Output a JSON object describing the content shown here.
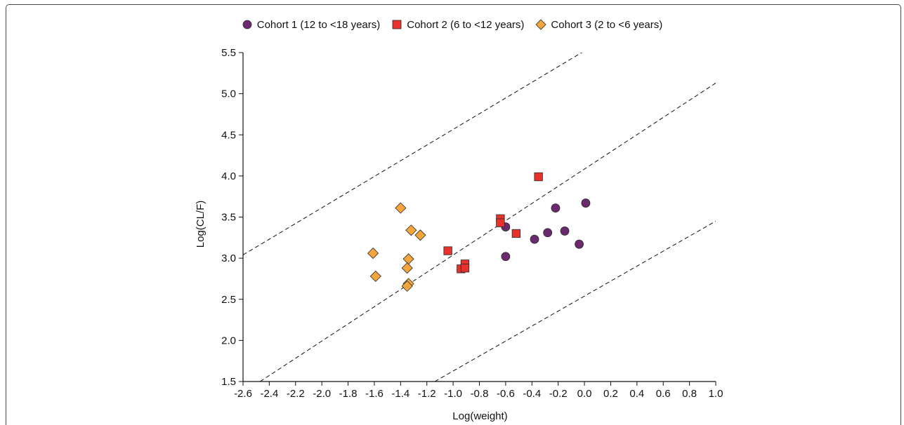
{
  "chart_data": {
    "type": "scatter",
    "xlabel": "Log(weight)",
    "ylabel": "Log(CL/F)",
    "xlim": [
      -2.6,
      1.0
    ],
    "ylim": [
      1.5,
      5.5
    ],
    "x_ticks": [
      "-2.6",
      "-2.4",
      "-2.2",
      "-2.0",
      "-1.8",
      "-1.6",
      "-1.4",
      "-1.2",
      "-1.0",
      "-0.8",
      "-0.6",
      "-0.4",
      "-0.2",
      "0.0",
      "0.2",
      "0.4",
      "0.6",
      "0.8",
      "1.0"
    ],
    "y_ticks": [
      "1.5",
      "2.0",
      "2.5",
      "3.0",
      "3.5",
      "4.0",
      "4.5",
      "5.0",
      "5.5"
    ],
    "legend_position": "top-center",
    "grid": false,
    "series": [
      {
        "name": "Cohort 1 (12 to <18 years)",
        "marker": "circle",
        "color": "#6b2a6e",
        "points": [
          {
            "x": -0.6,
            "y": 3.38
          },
          {
            "x": -0.6,
            "y": 3.02
          },
          {
            "x": -0.38,
            "y": 3.23
          },
          {
            "x": -0.28,
            "y": 3.31
          },
          {
            "x": -0.22,
            "y": 3.61
          },
          {
            "x": -0.15,
            "y": 3.33
          },
          {
            "x": -0.04,
            "y": 3.17
          },
          {
            "x": 0.01,
            "y": 3.67
          }
        ]
      },
      {
        "name": "Cohort 2 (6 to <12 years)",
        "marker": "square",
        "color": "#e8312a",
        "points": [
          {
            "x": -1.04,
            "y": 3.09
          },
          {
            "x": -0.94,
            "y": 2.87
          },
          {
            "x": -0.91,
            "y": 2.93
          },
          {
            "x": -0.91,
            "y": 2.88
          },
          {
            "x": -0.64,
            "y": 3.48
          },
          {
            "x": -0.64,
            "y": 3.43
          },
          {
            "x": -0.52,
            "y": 3.3
          },
          {
            "x": -0.35,
            "y": 3.99
          }
        ]
      },
      {
        "name": "Cohort 3 (2 to <6 years)",
        "marker": "diamond",
        "color": "#f5a53b",
        "points": [
          {
            "x": -1.61,
            "y": 3.06
          },
          {
            "x": -1.59,
            "y": 2.78
          },
          {
            "x": -1.4,
            "y": 3.61
          },
          {
            "x": -1.32,
            "y": 3.34
          },
          {
            "x": -1.25,
            "y": 3.28
          },
          {
            "x": -1.34,
            "y": 2.99
          },
          {
            "x": -1.35,
            "y": 2.88
          },
          {
            "x": -1.34,
            "y": 2.69
          },
          {
            "x": -1.35,
            "y": 2.66
          }
        ]
      }
    ],
    "reference_lines": [
      {
        "style": "dashed",
        "x1": -2.6,
        "y1": 3.04,
        "x2": 0.0,
        "y2": 5.52
      },
      {
        "style": "dashed",
        "x1": -2.47,
        "y1": 1.5,
        "x2": 1.0,
        "y2": 5.13
      },
      {
        "style": "dashed",
        "x1": -1.14,
        "y1": 1.5,
        "x2": 1.0,
        "y2": 3.45
      }
    ]
  }
}
